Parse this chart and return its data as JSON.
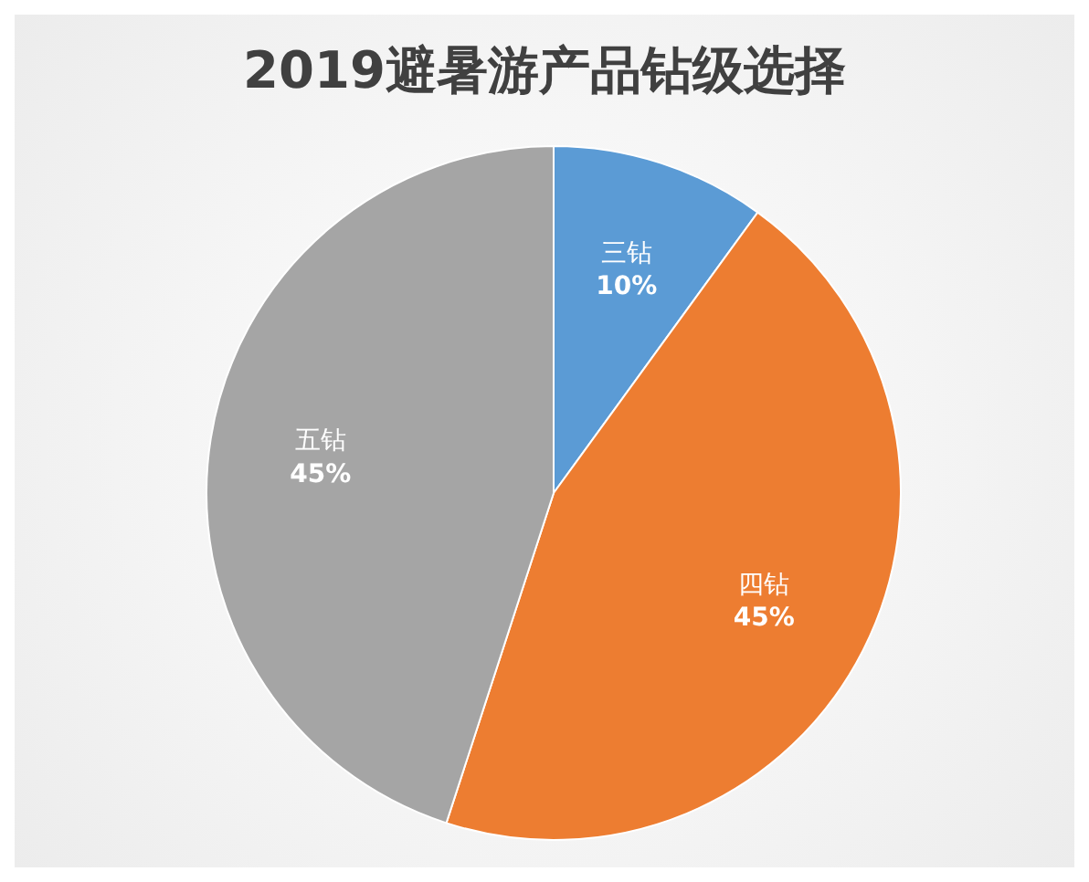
{
  "chart_data": {
    "type": "pie",
    "title": "2019避暑游产品钻级选择",
    "categories": [
      "三钻",
      "四钻",
      "五钻"
    ],
    "values": [
      10,
      45,
      45
    ],
    "value_labels": [
      "10%",
      "45%",
      "45%"
    ],
    "colors": [
      "#5b9bd5",
      "#ed7d31",
      "#a5a5a5"
    ],
    "legend": false
  }
}
